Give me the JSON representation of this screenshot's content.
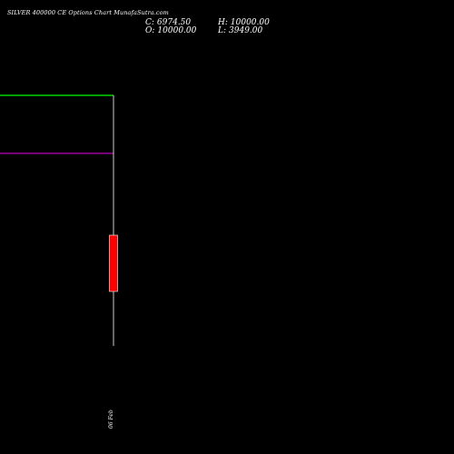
{
  "header": {
    "title": "SILVER 400000 CE Options Chart MunafaSutra.com"
  },
  "ohlc": {
    "close": {
      "label": "C:",
      "value": "6974.50"
    },
    "high": {
      "label": "H:",
      "value": "10000.00"
    },
    "open": {
      "label": "O:",
      "value": "10000.00"
    },
    "low": {
      "label": "L:",
      "value": "3949.00"
    }
  },
  "colors": {
    "background": "#000000",
    "candle_bearish": "#ff0000",
    "green_line": "#00ff00",
    "magenta_line": "#c000c0",
    "wick": "#ffffff"
  },
  "chart_data": {
    "type": "candlestick",
    "title": "SILVER 400000 CE Options Chart MunafaSutra.com",
    "ylim": [
      3949,
      10000
    ],
    "candles": [
      {
        "date": "06 Feb",
        "open": 10000.0,
        "high": 10000.0,
        "low": 3949.0,
        "close": 6974.5
      }
    ],
    "lines": [
      {
        "color": "#00ff00",
        "value": 10000.0
      },
      {
        "color": "#c000c0",
        "value": 8600.0
      }
    ],
    "x_tick_labels": [
      "06 Feb"
    ],
    "grid": false
  }
}
